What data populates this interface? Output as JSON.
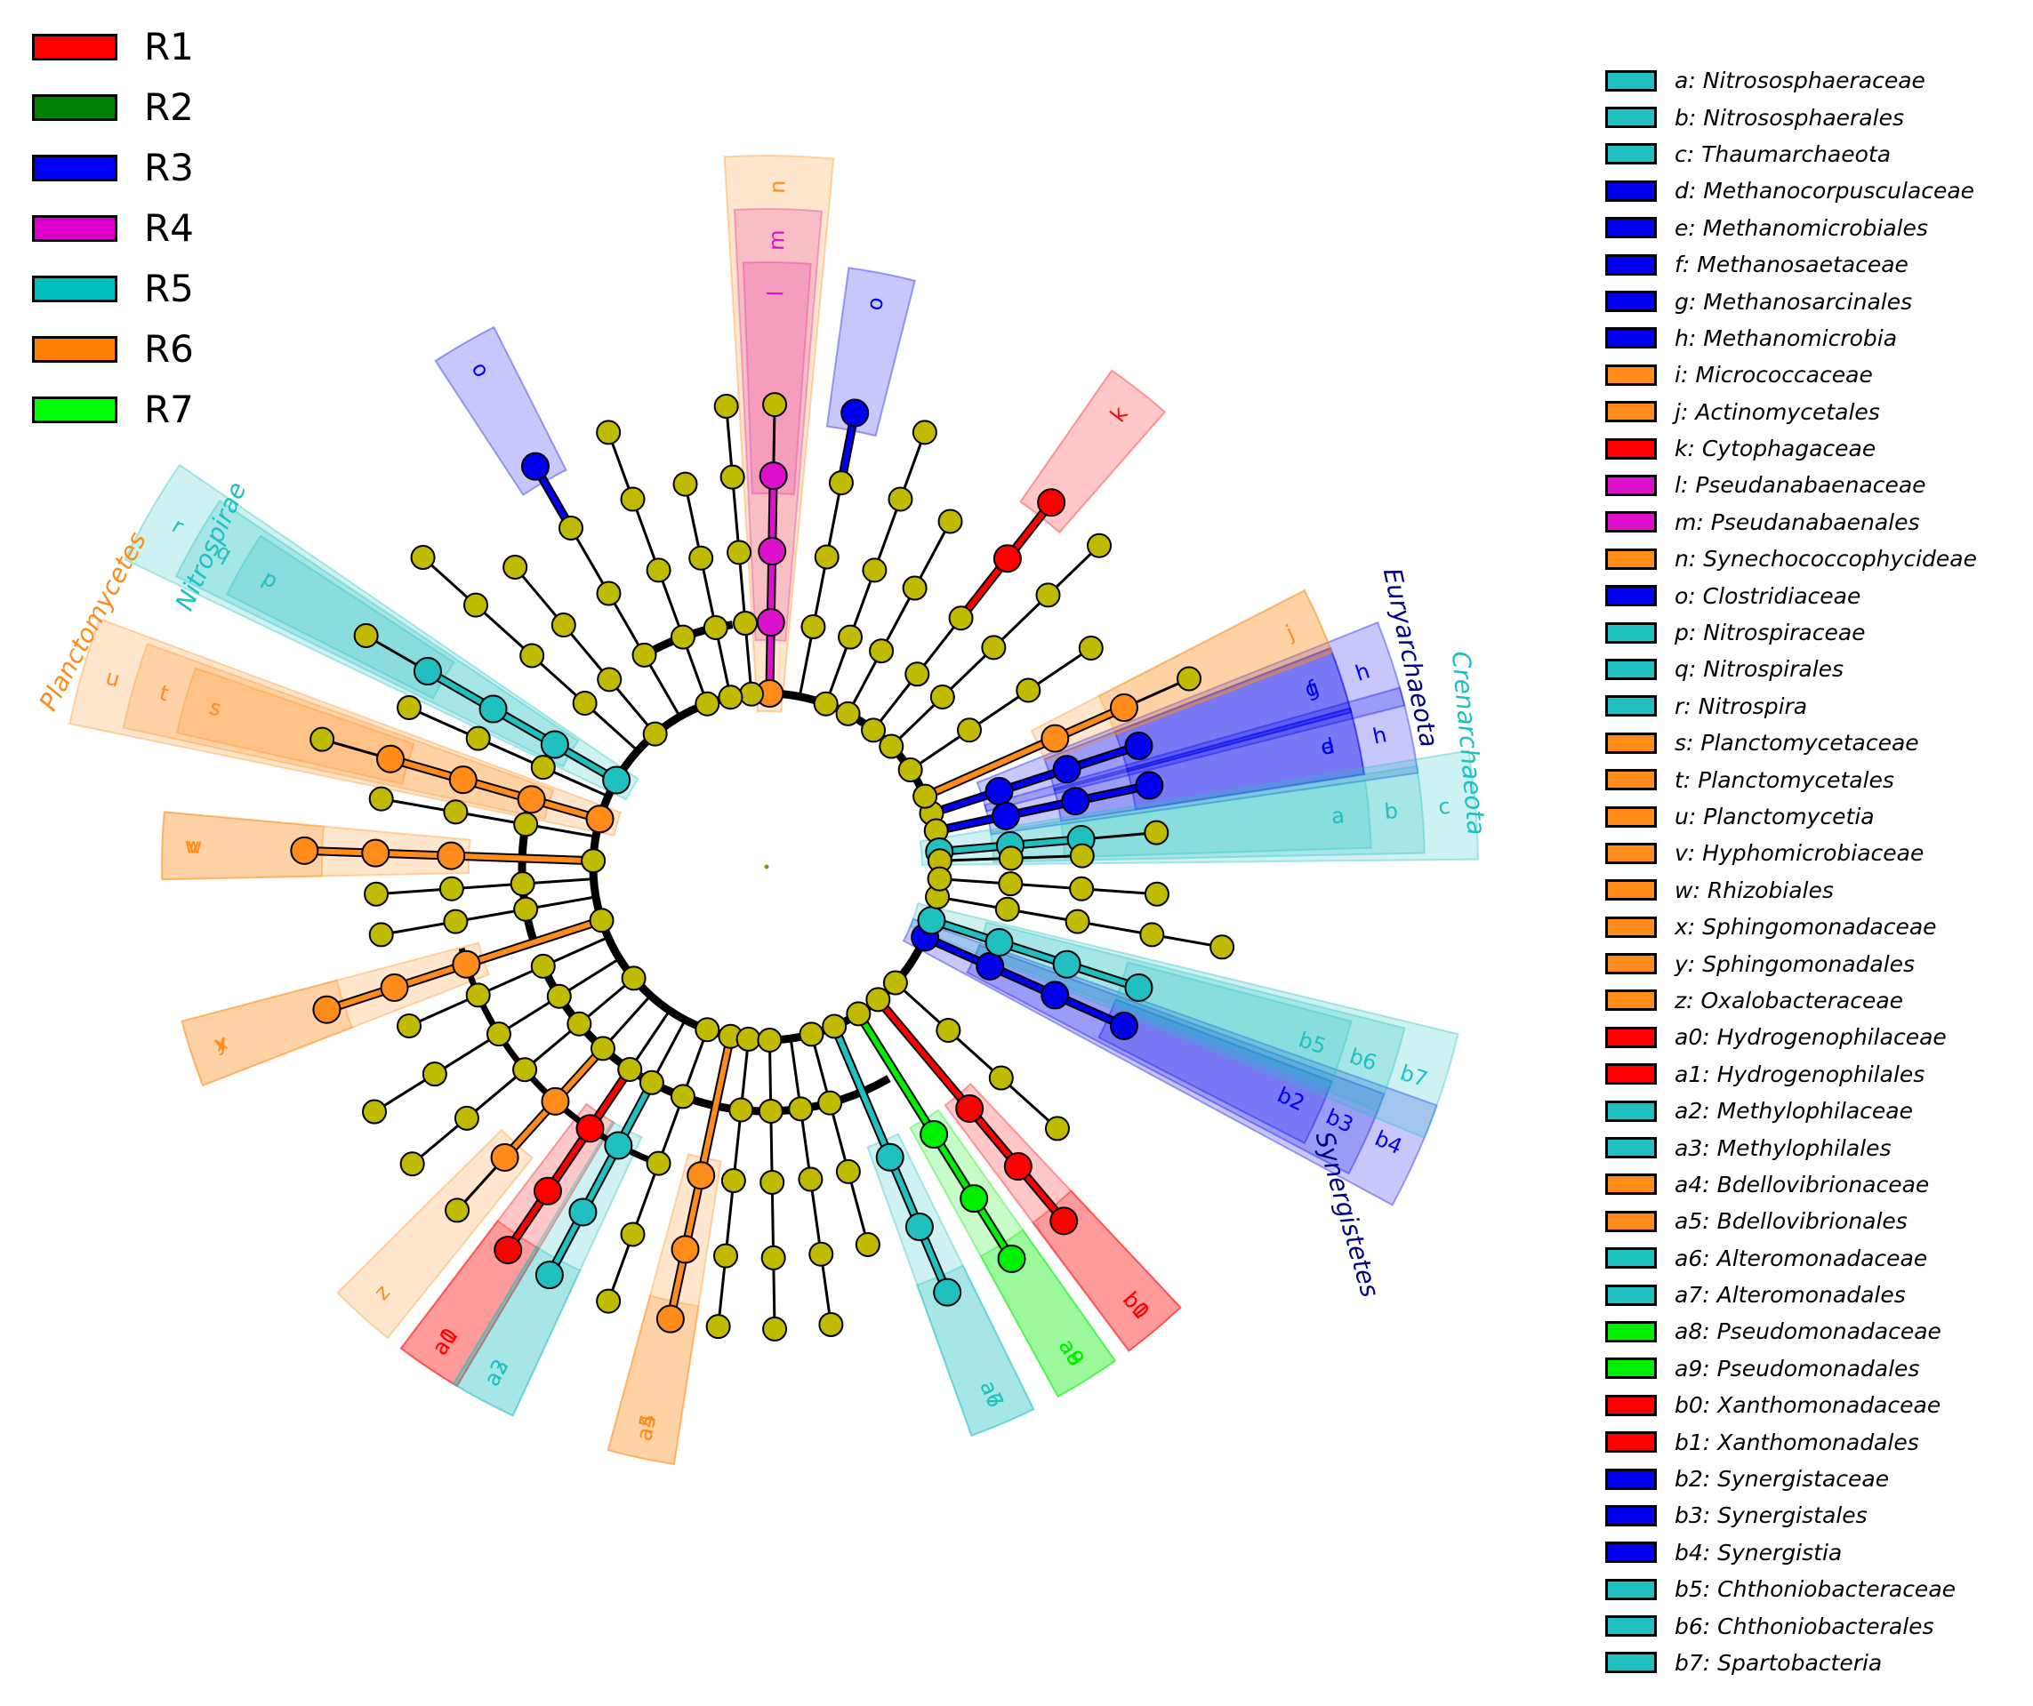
{
  "figure": {
    "type": "cladogram",
    "background": "#ffffff",
    "node_default_color": "#c0bb00",
    "line_color": "#000000"
  },
  "groups": [
    {
      "name": "R1",
      "color": "#ff0000"
    },
    {
      "name": "R2",
      "color": "#008000"
    },
    {
      "name": "R3",
      "color": "#0000ff"
    },
    {
      "name": "R4",
      "color": "#dd00cc"
    },
    {
      "name": "R5",
      "color": "#00bfbf"
    },
    {
      "name": "R6",
      "color": "#ff8000"
    },
    {
      "name": "R7",
      "color": "#00ff00"
    }
  ],
  "taxa": [
    {
      "key": "a",
      "name": "Nitrososphaeraceae",
      "group": "R5",
      "color": "#20c0c0"
    },
    {
      "key": "b",
      "name": "Nitrososphaerales",
      "group": "R5",
      "color": "#20c0c0"
    },
    {
      "key": "c",
      "name": "Thaumarchaeota",
      "group": "R5",
      "color": "#20c0c0"
    },
    {
      "key": "d",
      "name": "Methanocorpusculaceae",
      "group": "R3",
      "color": "#0000ee"
    },
    {
      "key": "e",
      "name": "Methanomicrobiales",
      "group": "R3",
      "color": "#0000ee"
    },
    {
      "key": "f",
      "name": "Methanosaetaceae",
      "group": "R3",
      "color": "#0000ee"
    },
    {
      "key": "g",
      "name": "Methanosarcinales",
      "group": "R3",
      "color": "#0000ee"
    },
    {
      "key": "h",
      "name": "Methanomicrobia",
      "group": "R3",
      "color": "#0000ee"
    },
    {
      "key": "i",
      "name": "Micrococcaceae",
      "group": "R6",
      "color": "#ff8c1a"
    },
    {
      "key": "j",
      "name": "Actinomycetales",
      "group": "R6",
      "color": "#ff8c1a"
    },
    {
      "key": "k",
      "name": "Cytophagaceae",
      "group": "R1",
      "color": "#ff0000"
    },
    {
      "key": "l",
      "name": "Pseudanabaenaceae",
      "group": "R4",
      "color": "#dd11cc"
    },
    {
      "key": "m",
      "name": "Pseudanabaenales",
      "group": "R4",
      "color": "#dd11cc"
    },
    {
      "key": "n",
      "name": "Synechococcophycideae",
      "group": "R6",
      "color": "#ff8c1a"
    },
    {
      "key": "o",
      "name": "Clostridiaceae",
      "group": "R3",
      "color": "#0000ee"
    },
    {
      "key": "p",
      "name": "Nitrospiraceae",
      "group": "R5",
      "color": "#20c0c0"
    },
    {
      "key": "q",
      "name": "Nitrospirales",
      "group": "R5",
      "color": "#20c0c0"
    },
    {
      "key": "r",
      "name": "Nitrospira",
      "group": "R5",
      "color": "#20c0c0"
    },
    {
      "key": "s",
      "name": "Planctomycetaceae",
      "group": "R6",
      "color": "#ff8c1a"
    },
    {
      "key": "t",
      "name": "Planctomycetales",
      "group": "R6",
      "color": "#ff8c1a"
    },
    {
      "key": "u",
      "name": "Planctomycetia",
      "group": "R6",
      "color": "#ff8c1a"
    },
    {
      "key": "v",
      "name": "Hyphomicrobiaceae",
      "group": "R6",
      "color": "#ff8c1a"
    },
    {
      "key": "w",
      "name": "Rhizobiales",
      "group": "R6",
      "color": "#ff8c1a"
    },
    {
      "key": "x",
      "name": "Sphingomonadaceae",
      "group": "R6",
      "color": "#ff8c1a"
    },
    {
      "key": "y",
      "name": "Sphingomonadales",
      "group": "R6",
      "color": "#ff8c1a"
    },
    {
      "key": "z",
      "name": "Oxalobacteraceae",
      "group": "R6",
      "color": "#ff8c1a"
    },
    {
      "key": "a0",
      "name": "Hydrogenophilaceae",
      "group": "R1",
      "color": "#ff0000"
    },
    {
      "key": "a1",
      "name": "Hydrogenophilales",
      "group": "R1",
      "color": "#ff0000"
    },
    {
      "key": "a2",
      "name": "Methylophilaceae",
      "group": "R5",
      "color": "#20c0c0"
    },
    {
      "key": "a3",
      "name": "Methylophilales",
      "group": "R5",
      "color": "#20c0c0"
    },
    {
      "key": "a4",
      "name": "Bdellovibrionaceae",
      "group": "R6",
      "color": "#ff8c1a"
    },
    {
      "key": "a5",
      "name": "Bdellovibrionales",
      "group": "R6",
      "color": "#ff8c1a"
    },
    {
      "key": "a6",
      "name": "Alteromonadaceae",
      "group": "R5",
      "color": "#20c0c0"
    },
    {
      "key": "a7",
      "name": "Alteromonadales",
      "group": "R5",
      "color": "#20c0c0"
    },
    {
      "key": "a8",
      "name": "Pseudomonadaceae",
      "group": "R7",
      "color": "#00ee00"
    },
    {
      "key": "a9",
      "name": "Pseudomonadales",
      "group": "R7",
      "color": "#00ee00"
    },
    {
      "key": "b0",
      "name": "Xanthomonadaceae",
      "group": "R1",
      "color": "#ff0000"
    },
    {
      "key": "b1",
      "name": "Xanthomonadales",
      "group": "R1",
      "color": "#ff0000"
    },
    {
      "key": "b2",
      "name": "Synergistaceae",
      "group": "R3",
      "color": "#0000ee"
    },
    {
      "key": "b3",
      "name": "Synergistales",
      "group": "R3",
      "color": "#0000ee"
    },
    {
      "key": "b4",
      "name": "Synergistia",
      "group": "R3",
      "color": "#0000ee"
    },
    {
      "key": "b5",
      "name": "Chthoniobacteraceae",
      "group": "R5",
      "color": "#20c0c0"
    },
    {
      "key": "b6",
      "name": "Chthoniobacterales",
      "group": "R5",
      "color": "#20c0c0"
    },
    {
      "key": "b7",
      "name": "Spartobacteria",
      "group": "R5",
      "color": "#20c0c0"
    }
  ],
  "phyla": [
    {
      "name": "Euryarchaeota",
      "color": "#000080"
    },
    {
      "name": "Crenarchaeota",
      "color": "#20c0c0"
    },
    {
      "name": "Nitrospirae",
      "color": "#20c0c0"
    },
    {
      "name": "Planctomycetes",
      "color": "#ff8c1a"
    },
    {
      "name": "Synergistetes",
      "color": "#000080"
    }
  ]
}
